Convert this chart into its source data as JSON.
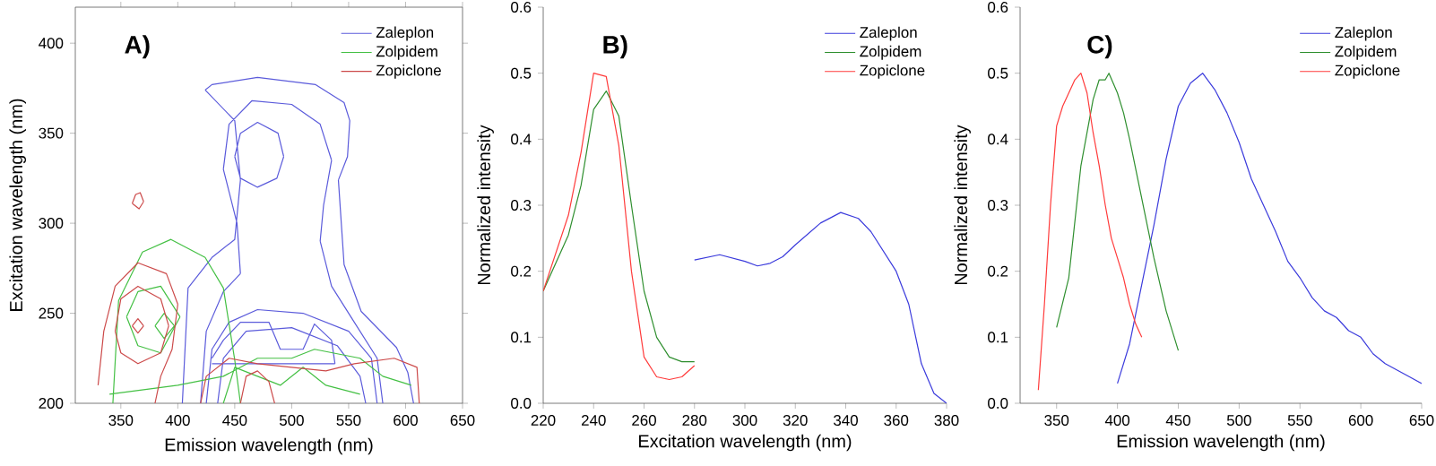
{
  "chart_data": [
    {
      "type": "line",
      "title": "A)",
      "xlabel": "Emission wavelength (nm)",
      "ylabel": "Excitation wavelength (nm)",
      "xlim": [
        310,
        650
      ],
      "ylim": [
        200,
        420
      ],
      "xticks": [
        350,
        400,
        450,
        500,
        550,
        600,
        650
      ],
      "yticks": [
        200,
        250,
        300,
        350,
        400
      ],
      "legend": "top right",
      "series": [
        {
          "name": "Zaleplon",
          "color": "#5b5bdb",
          "x": [
            404,
            409,
            430,
            450,
            455,
            null,
            424,
            450,
            455,
            null,
            424,
            430,
            470,
            521,
            546,
            551,
            null,
            541,
            549,
            551,
            null,
            541,
            546,
            561,
            592,
            602,
            607,
            null,
            420,
            425,
            440,
            455,
            null,
            440,
            452,
            455,
            null,
            440,
            445,
            465,
            500,
            525,
            535,
            null,
            525,
            528,
            535,
            null,
            525,
            535,
            555,
            575,
            580,
            null,
            450,
            455,
            470,
            488,
            493,
            null,
            450,
            455,
            470,
            487,
            493,
            null,
            425,
            430,
            445,
            470,
            510,
            550,
            570,
            575,
            null,
            435,
            440,
            460,
            500,
            540,
            560,
            565,
            null,
            430,
            440,
            455,
            480,
            490,
            510,
            520,
            535,
            538,
            null,
            430,
            538
          ],
          "values": [
            200,
            264,
            281,
            291,
            324,
            null,
            374,
            357,
            324,
            null,
            374,
            377,
            381,
            377,
            367,
            357,
            null,
            324,
            337,
            357,
            null,
            324,
            277,
            251,
            231,
            217,
            200,
            null,
            200,
            240,
            262,
            272,
            null,
            330,
            300,
            272,
            null,
            330,
            355,
            368,
            366,
            355,
            335,
            null,
            290,
            310,
            335,
            null,
            290,
            265,
            245,
            225,
            200,
            null,
            337,
            350,
            356,
            350,
            337,
            null,
            337,
            325,
            320,
            325,
            337,
            null,
            200,
            230,
            245,
            252,
            250,
            240,
            225,
            200,
            null,
            200,
            225,
            240,
            242,
            232,
            215,
            200,
            null,
            225,
            235,
            245,
            245,
            230,
            230,
            244,
            235,
            222,
            null,
            222,
            222
          ]
        },
        {
          "name": "Zolpidem",
          "color": "#44c044",
          "x": [
            343,
            348,
            369,
            394,
            424,
            440,
            450,
            455,
            null,
            355,
            365,
            385,
            402,
            null,
            355,
            365,
            385,
            402,
            null,
            380,
            388,
            397,
            null,
            380,
            388,
            397,
            null,
            340,
            400,
            440,
            470,
            500,
            520,
            560,
            580,
            605,
            null,
            440,
            450,
            470,
            490,
            510,
            530,
            560
          ],
          "values": [
            200,
            257,
            284,
            291,
            281,
            264,
            224,
            200,
            null,
            248,
            262,
            265,
            248,
            null,
            248,
            232,
            228,
            248,
            null,
            243,
            250,
            243,
            null,
            243,
            236,
            243,
            null,
            205,
            210,
            215,
            225,
            225,
            230,
            225,
            215,
            210,
            null,
            200,
            220,
            215,
            210,
            220,
            210,
            205
          ]
        },
        {
          "name": "Zopiclone",
          "color": "#cc4a4a",
          "x": [
            330,
            335,
            345,
            365,
            390,
            400,
            null,
            380,
            385,
            395,
            400,
            null,
            345,
            350,
            365,
            385,
            392,
            null,
            345,
            350,
            365,
            385,
            392,
            null,
            360,
            365,
            370,
            null,
            360,
            365,
            370,
            null,
            360,
            363,
            367,
            370,
            null,
            360,
            366,
            370,
            null,
            420,
            425,
            445,
            470,
            500,
            530,
            555,
            590,
            610,
            612,
            null,
            455,
            460,
            470,
            480,
            485
          ],
          "values": [
            210,
            240,
            265,
            278,
            272,
            255,
            null,
            200,
            215,
            230,
            255,
            null,
            240,
            258,
            265,
            258,
            243,
            null,
            240,
            228,
            222,
            228,
            243,
            null,
            243,
            247,
            243,
            null,
            243,
            239,
            243,
            null,
            311,
            316,
            317,
            312,
            null,
            311,
            308,
            312,
            null,
            200,
            215,
            225,
            222,
            220,
            218,
            222,
            225,
            220,
            200,
            null,
            200,
            215,
            218,
            212,
            200
          ]
        }
      ]
    },
    {
      "type": "line",
      "title": "B)",
      "xlabel": "Excitation wavelength (nm)",
      "ylabel": "Normalized intensity",
      "xlim": [
        220,
        380
      ],
      "ylim": [
        0,
        0.6
      ],
      "xticks": [
        220,
        240,
        260,
        280,
        300,
        320,
        340,
        360,
        380
      ],
      "yticks": [
        {
          "value": 0,
          "label": "0.0"
        },
        0.1,
        0.2,
        0.3,
        0.4,
        0.5,
        0.6
      ],
      "legend": "top right",
      "series": [
        {
          "name": "Zaleplon",
          "color": "#3b3bdc",
          "x": [
            280,
            290,
            300,
            305,
            310,
            315,
            320,
            330,
            338,
            345,
            350,
            360,
            365,
            370,
            375,
            380
          ],
          "values": [
            0.217,
            0.225,
            0.215,
            0.208,
            0.212,
            0.222,
            0.24,
            0.273,
            0.289,
            0.28,
            0.26,
            0.2,
            0.15,
            0.06,
            0.015,
            0
          ]
        },
        {
          "name": "Zolpidem",
          "color": "#2f8f2f",
          "x": [
            220,
            230,
            235,
            240,
            245,
            250,
            255,
            260,
            265,
            270,
            275,
            280
          ],
          "values": [
            0.17,
            0.255,
            0.33,
            0.445,
            0.473,
            0.435,
            0.3,
            0.17,
            0.1,
            0.07,
            0.063,
            0.063
          ]
        },
        {
          "name": "Zopiclone",
          "color": "#ff3b3b",
          "x": [
            220,
            230,
            235,
            240,
            245,
            250,
            255,
            260,
            265,
            270,
            275,
            280
          ],
          "values": [
            0.17,
            0.285,
            0.38,
            0.5,
            0.495,
            0.39,
            0.2,
            0.07,
            0.04,
            0.036,
            0.04,
            0.057
          ]
        }
      ]
    },
    {
      "type": "line",
      "title": "C)",
      "xlabel": "Emission wavelength (nm)",
      "ylabel": "Normalized intensity",
      "xlim": [
        320,
        650
      ],
      "ylim": [
        0,
        0.6
      ],
      "xticks": [
        350,
        400,
        450,
        500,
        550,
        600,
        650
      ],
      "yticks": [
        {
          "value": 0,
          "label": "0.0"
        },
        0.1,
        0.2,
        0.3,
        0.4,
        0.5,
        0.6
      ],
      "legend": "top right",
      "series": [
        {
          "name": "Zaleplon",
          "color": "#3b3bdc",
          "x": [
            400,
            410,
            420,
            430,
            440,
            450,
            460,
            470,
            480,
            490,
            500,
            510,
            520,
            530,
            540,
            550,
            560,
            570,
            580,
            590,
            600,
            610,
            620,
            630,
            640,
            650
          ],
          "values": [
            0.03,
            0.09,
            0.18,
            0.27,
            0.37,
            0.45,
            0.485,
            0.5,
            0.475,
            0.44,
            0.395,
            0.34,
            0.3,
            0.26,
            0.215,
            0.19,
            0.16,
            0.14,
            0.13,
            0.11,
            0.1,
            0.075,
            0.06,
            0.05,
            0.04,
            0.03
          ]
        },
        {
          "name": "Zolpidem",
          "color": "#2f8f2f",
          "x": [
            350,
            360,
            370,
            380,
            385,
            390,
            393,
            400,
            405,
            410,
            420,
            430,
            440,
            445,
            450
          ],
          "values": [
            0.115,
            0.19,
            0.36,
            0.46,
            0.49,
            0.49,
            0.5,
            0.47,
            0.44,
            0.4,
            0.31,
            0.22,
            0.14,
            0.11,
            0.08
          ]
        },
        {
          "name": "Zopiclone",
          "color": "#ff3b3b",
          "x": [
            335,
            340,
            345,
            350,
            355,
            360,
            365,
            370,
            375,
            380,
            385,
            390,
            395,
            400,
            405,
            410,
            415,
            420
          ],
          "values": [
            0.02,
            0.15,
            0.3,
            0.42,
            0.45,
            0.47,
            0.49,
            0.5,
            0.47,
            0.41,
            0.36,
            0.3,
            0.25,
            0.22,
            0.19,
            0.15,
            0.12,
            0.1
          ]
        }
      ]
    }
  ]
}
